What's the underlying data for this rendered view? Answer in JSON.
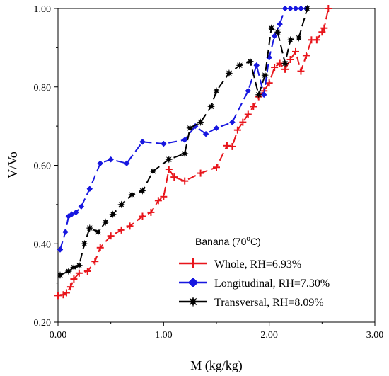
{
  "chart_data": {
    "type": "scatter",
    "title": "",
    "xlabel": "M (kg/kg)",
    "ylabel": "V/Vo",
    "xlim": [
      0,
      3
    ],
    "ylim": [
      0.2,
      1.0
    ],
    "x_ticks": [
      "0.00",
      "1.00",
      "2.00",
      "3.00"
    ],
    "y_ticks": [
      "0.20",
      "0.40",
      "0.60",
      "0.80",
      "1.00"
    ],
    "grid": false,
    "legend": {
      "title_prefix": "Banana (70",
      "title_sup": "o",
      "title_suffix": "C)",
      "placement": "bottom-right"
    },
    "series": [
      {
        "name": "Whole, RH=6.93%",
        "color": "#e8151b",
        "marker": "plus",
        "x": [
          0.0,
          0.05,
          0.08,
          0.12,
          0.15,
          0.2,
          0.28,
          0.35,
          0.4,
          0.5,
          0.6,
          0.68,
          0.8,
          0.88,
          0.95,
          1.0,
          1.05,
          1.1,
          1.2,
          1.35,
          1.5,
          1.6,
          1.65,
          1.7,
          1.75,
          1.8,
          1.85,
          1.9,
          1.95,
          2.0,
          2.05,
          2.1,
          2.15,
          2.2,
          2.25,
          2.3,
          2.35,
          2.4,
          2.45,
          2.5,
          2.52,
          2.56
        ],
        "y": [
          0.268,
          0.27,
          0.275,
          0.29,
          0.31,
          0.325,
          0.33,
          0.355,
          0.39,
          0.42,
          0.435,
          0.445,
          0.47,
          0.48,
          0.51,
          0.52,
          0.59,
          0.57,
          0.56,
          0.58,
          0.595,
          0.65,
          0.648,
          0.69,
          0.71,
          0.73,
          0.75,
          0.775,
          0.79,
          0.81,
          0.85,
          0.86,
          0.845,
          0.87,
          0.89,
          0.84,
          0.88,
          0.92,
          0.92,
          0.94,
          0.95,
          1.0
        ]
      },
      {
        "name": "Longitudinal, RH=7.30%",
        "color": "#1717e0",
        "marker": "diamond",
        "x": [
          0.02,
          0.07,
          0.1,
          0.13,
          0.17,
          0.22,
          0.3,
          0.4,
          0.5,
          0.65,
          0.8,
          1.0,
          1.2,
          1.3,
          1.4,
          1.5,
          1.65,
          1.8,
          1.88,
          1.95,
          2.0,
          2.05,
          2.1,
          2.15,
          2.2,
          2.25,
          2.3,
          2.35
        ],
        "y": [
          0.385,
          0.43,
          0.47,
          0.475,
          0.48,
          0.495,
          0.54,
          0.605,
          0.615,
          0.605,
          0.66,
          0.655,
          0.665,
          0.7,
          0.68,
          0.695,
          0.71,
          0.79,
          0.855,
          0.78,
          0.875,
          0.93,
          0.96,
          1.0,
          1.0,
          1.0,
          1.0,
          1.0
        ]
      },
      {
        "name": "Transversal, RH=8.09%",
        "color": "#000000",
        "marker": "star",
        "x": [
          0.02,
          0.1,
          0.15,
          0.2,
          0.25,
          0.3,
          0.38,
          0.45,
          0.52,
          0.6,
          0.7,
          0.8,
          0.9,
          1.05,
          1.2,
          1.25,
          1.35,
          1.45,
          1.5,
          1.62,
          1.72,
          1.82,
          1.9,
          1.96,
          2.02,
          2.08,
          2.15,
          2.2,
          2.28,
          2.36
        ],
        "y": [
          0.32,
          0.33,
          0.34,
          0.345,
          0.4,
          0.44,
          0.43,
          0.455,
          0.475,
          0.5,
          0.525,
          0.535,
          0.585,
          0.615,
          0.63,
          0.695,
          0.71,
          0.75,
          0.79,
          0.835,
          0.855,
          0.865,
          0.78,
          0.83,
          0.95,
          0.94,
          0.86,
          0.92,
          0.925,
          1.0
        ]
      }
    ]
  }
}
